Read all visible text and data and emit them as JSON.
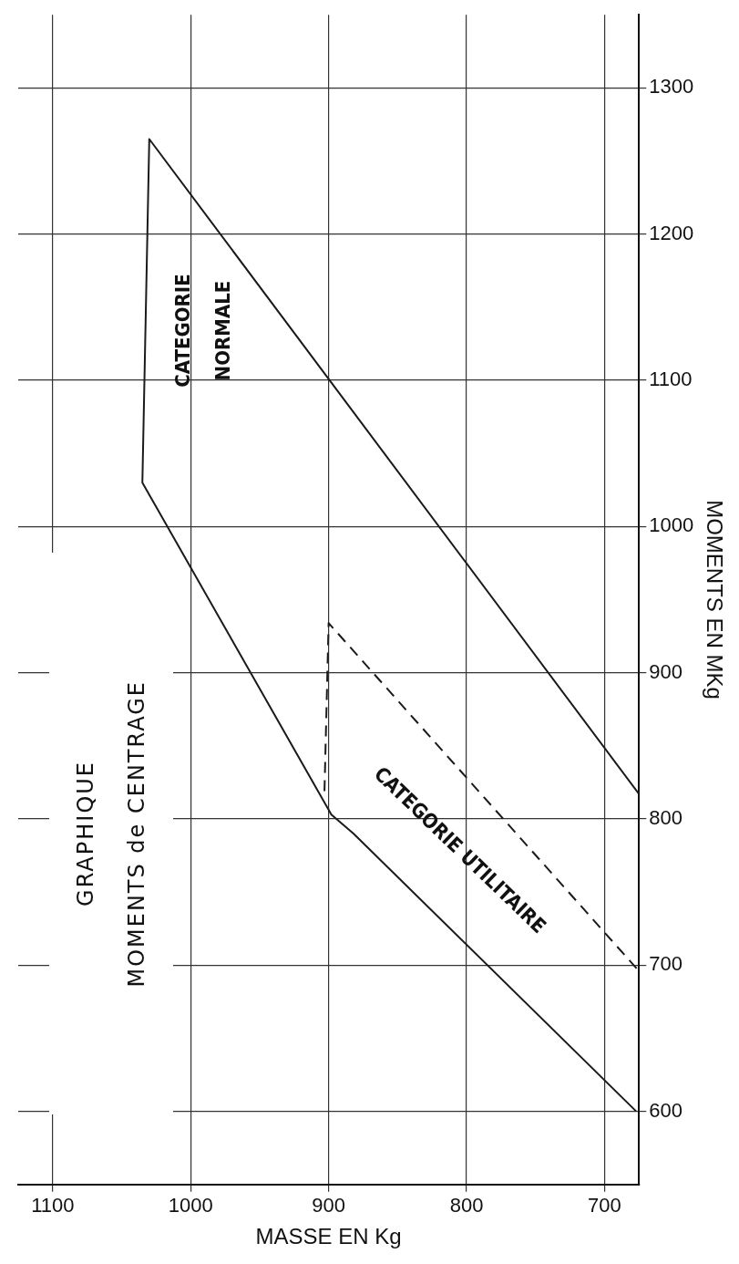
{
  "chart_data": {
    "type": "line",
    "title": "GRAPHIQUE",
    "subtitle": "MOMENTS de CENTRAGE",
    "xlabel": "MASSE EN Kg",
    "ylabel": "MOMENTS EN MKg",
    "xlim": [
      1125,
      675
    ],
    "xticks": [
      1100,
      1000,
      900,
      800,
      700
    ],
    "ylim": [
      550,
      1350
    ],
    "yticks": [
      600,
      700,
      800,
      900,
      1000,
      1100,
      1200,
      1300
    ],
    "series": [
      {
        "color": "#1a1a1a",
        "line_style": "solid",
        "x": [
          677,
          882,
          898,
          1035,
          1030,
          675
        ],
        "values": [
          600,
          790,
          803,
          1030,
          1265,
          817
        ]
      },
      {
        "color": "#1a1a1a",
        "line_style": "dashed",
        "x": [
          903,
          900,
          676
        ],
        "values": [
          819,
          934,
          697
        ]
      }
    ],
    "annotations": [
      "CATEGORIE NORMALE",
      "CATEGORIE UTILITAIRE"
    ],
    "grid": true,
    "legend": false,
    "marker": "none"
  }
}
